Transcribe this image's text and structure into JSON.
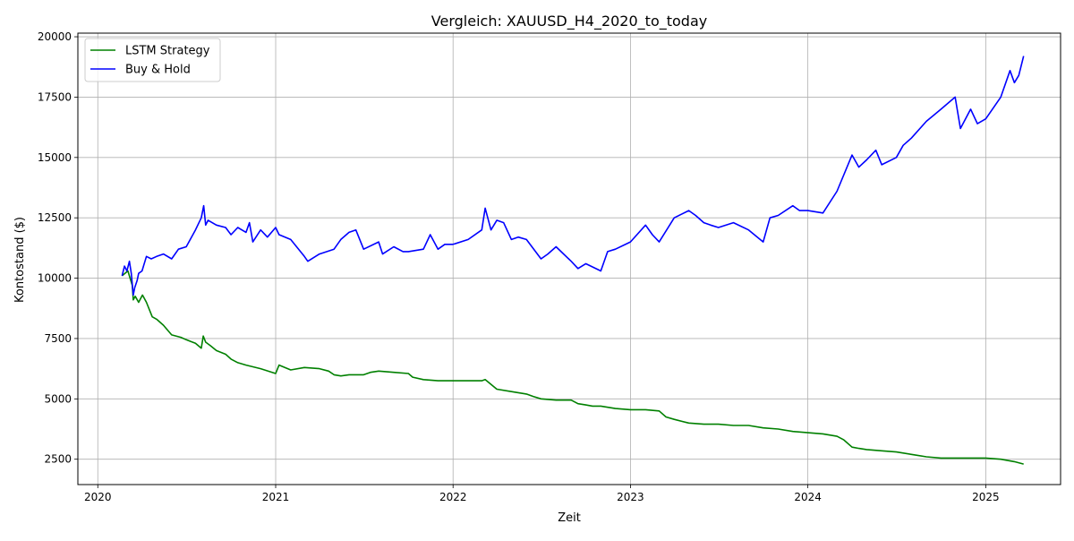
{
  "chart_data": {
    "type": "line",
    "title": "Vergleich: XAUUSD_H4_2020_to_today",
    "xlabel": "Zeit",
    "ylabel": "Kontostand ($)",
    "xlim": [
      "2019-11-21",
      "2025-06-04"
    ],
    "ylim": [
      1450,
      20150
    ],
    "x_ticks": [
      "2020",
      "2021",
      "2022",
      "2023",
      "2024",
      "2025"
    ],
    "y_ticks": [
      2500,
      5000,
      7500,
      10000,
      12500,
      15000,
      17500,
      20000
    ],
    "grid": true,
    "legend": "top-left",
    "series": [
      {
        "name": "LSTM Strategy",
        "color": "#008000",
        "x": [
          "2020-02-20",
          "2020-03-03",
          "2020-03-12",
          "2020-03-14",
          "2020-03-18",
          "2020-03-25",
          "2020-04-02",
          "2020-04-10",
          "2020-04-22",
          "2020-05-01",
          "2020-05-15",
          "2020-06-01",
          "2020-06-20",
          "2020-07-01",
          "2020-07-20",
          "2020-08-01",
          "2020-08-05",
          "2020-08-10",
          "2020-08-20",
          "2020-09-01",
          "2020-09-20",
          "2020-10-01",
          "2020-10-15",
          "2020-11-01",
          "2020-12-01",
          "2021-01-01",
          "2021-01-08",
          "2021-02-01",
          "2021-03-01",
          "2021-04-01",
          "2021-04-20",
          "2021-05-01",
          "2021-05-15",
          "2021-06-01",
          "2021-07-01",
          "2021-07-15",
          "2021-08-01",
          "2021-09-01",
          "2021-10-01",
          "2021-10-10",
          "2021-11-01",
          "2021-12-01",
          "2022-01-01",
          "2022-02-01",
          "2022-03-01",
          "2022-03-08",
          "2022-04-01",
          "2022-05-01",
          "2022-06-01",
          "2022-06-15",
          "2022-07-01",
          "2022-08-01",
          "2022-09-01",
          "2022-09-15",
          "2022-10-01",
          "2022-10-15",
          "2022-11-01",
          "2022-12-01",
          "2023-01-01",
          "2023-02-01",
          "2023-03-01",
          "2023-03-15",
          "2023-04-01",
          "2023-05-01",
          "2023-06-01",
          "2023-07-01",
          "2023-08-01",
          "2023-09-01",
          "2023-10-01",
          "2023-11-01",
          "2023-12-01",
          "2024-01-01",
          "2024-02-01",
          "2024-03-01",
          "2024-03-15",
          "2024-04-01",
          "2024-04-15",
          "2024-05-01",
          "2024-06-01",
          "2024-07-01",
          "2024-08-01",
          "2024-09-01",
          "2024-10-01",
          "2024-11-01",
          "2024-12-01",
          "2025-01-01",
          "2025-02-01",
          "2025-03-01",
          "2025-03-20"
        ],
        "y": [
          10100,
          10300,
          9700,
          9100,
          9250,
          9000,
          9300,
          9000,
          8400,
          8300,
          8050,
          7650,
          7550,
          7450,
          7300,
          7100,
          7600,
          7350,
          7200,
          7000,
          6850,
          6650,
          6500,
          6400,
          6250,
          6050,
          6400,
          6200,
          6300,
          6250,
          6150,
          6000,
          5950,
          6000,
          6000,
          6100,
          6150,
          6100,
          6050,
          5900,
          5800,
          5750,
          5750,
          5750,
          5750,
          5800,
          5400,
          5300,
          5200,
          5100,
          5000,
          4950,
          4950,
          4800,
          4750,
          4700,
          4700,
          4600,
          4550,
          4550,
          4500,
          4250,
          4150,
          4000,
          3950,
          3950,
          3900,
          3900,
          3800,
          3750,
          3650,
          3600,
          3550,
          3450,
          3300,
          3000,
          2950,
          2900,
          2850,
          2800,
          2700,
          2600,
          2550,
          2550,
          2550,
          2550,
          2500,
          2400,
          2300
        ]
      },
      {
        "name": "Buy & Hold",
        "color": "#0000ff",
        "x": [
          "2020-02-20",
          "2020-02-25",
          "2020-03-01",
          "2020-03-06",
          "2020-03-10",
          "2020-03-14",
          "2020-03-17",
          "2020-03-22",
          "2020-03-25",
          "2020-04-01",
          "2020-04-10",
          "2020-04-20",
          "2020-05-01",
          "2020-05-15",
          "2020-06-01",
          "2020-06-15",
          "2020-07-01",
          "2020-07-20",
          "2020-08-01",
          "2020-08-06",
          "2020-08-10",
          "2020-08-15",
          "2020-09-01",
          "2020-09-20",
          "2020-10-01",
          "2020-10-15",
          "2020-11-01",
          "2020-11-08",
          "2020-11-15",
          "2020-12-01",
          "2020-12-15",
          "2021-01-01",
          "2021-01-08",
          "2021-02-01",
          "2021-03-01",
          "2021-03-08",
          "2021-04-01",
          "2021-05-01",
          "2021-05-15",
          "2021-06-01",
          "2021-06-15",
          "2021-07-01",
          "2021-08-01",
          "2021-08-09",
          "2021-09-01",
          "2021-09-20",
          "2021-10-01",
          "2021-11-01",
          "2021-11-15",
          "2021-12-01",
          "2021-12-15",
          "2022-01-01",
          "2022-02-01",
          "2022-03-01",
          "2022-03-08",
          "2022-03-20",
          "2022-04-01",
          "2022-04-15",
          "2022-05-01",
          "2022-05-15",
          "2022-06-01",
          "2022-07-01",
          "2022-07-15",
          "2022-08-01",
          "2022-09-01",
          "2022-09-15",
          "2022-10-01",
          "2022-11-01",
          "2022-11-15",
          "2022-12-01",
          "2023-01-01",
          "2023-02-01",
          "2023-02-15",
          "2023-03-01",
          "2023-04-01",
          "2023-05-01",
          "2023-05-15",
          "2023-06-01",
          "2023-06-15",
          "2023-07-01",
          "2023-08-01",
          "2023-09-01",
          "2023-10-01",
          "2023-10-15",
          "2023-11-01",
          "2023-12-01",
          "2023-12-15",
          "2024-01-01",
          "2024-02-01",
          "2024-03-01",
          "2024-04-01",
          "2024-04-15",
          "2024-05-01",
          "2024-05-20",
          "2024-06-01",
          "2024-07-01",
          "2024-07-15",
          "2024-08-01",
          "2024-09-01",
          "2024-10-01",
          "2024-10-30",
          "2024-11-10",
          "2024-12-01",
          "2024-12-15",
          "2025-01-01",
          "2025-02-01",
          "2025-02-20",
          "2025-03-01",
          "2025-03-10",
          "2025-03-20"
        ],
        "y": [
          10100,
          10500,
          10300,
          10700,
          10200,
          9300,
          9600,
          9900,
          10200,
          10300,
          10900,
          10800,
          10900,
          11000,
          10800,
          11200,
          11300,
          12000,
          12500,
          13000,
          12200,
          12400,
          12200,
          12100,
          11800,
          12100,
          11900,
          12300,
          11500,
          12000,
          11700,
          12100,
          11800,
          11600,
          10900,
          10700,
          11000,
          11200,
          11600,
          11900,
          12000,
          11200,
          11500,
          11000,
          11300,
          11100,
          11100,
          11200,
          11800,
          11200,
          11400,
          11400,
          11600,
          12000,
          12900,
          12000,
          12400,
          12300,
          11600,
          11700,
          11600,
          10800,
          11000,
          11300,
          10700,
          10400,
          10600,
          10300,
          11100,
          11200,
          11500,
          12200,
          11800,
          11500,
          12500,
          12800,
          12600,
          12300,
          12200,
          12100,
          12300,
          12000,
          11500,
          12500,
          12600,
          13000,
          12800,
          12800,
          12700,
          13600,
          15100,
          14600,
          14900,
          15300,
          14700,
          15000,
          15500,
          15800,
          16500,
          17000,
          17500,
          16200,
          17000,
          16400,
          16600,
          17500,
          18600,
          18100,
          18400,
          19200
        ]
      }
    ]
  }
}
